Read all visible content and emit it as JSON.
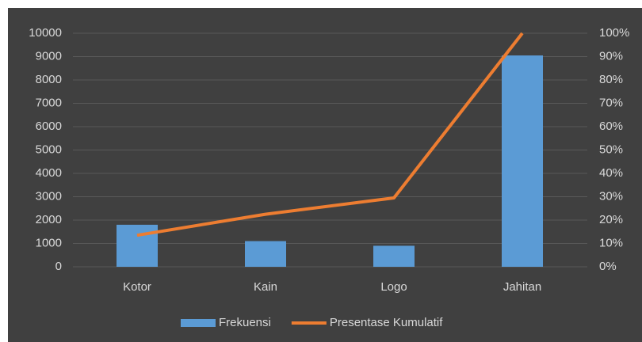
{
  "chart_data": {
    "type": "bar",
    "categories": [
      "Kotor",
      "Kain",
      "Logo",
      "Jahitan"
    ],
    "series": [
      {
        "name": "Frekuensi",
        "color": "#5b9bd5",
        "values": [
          1800,
          1100,
          900,
          9050
        ]
      },
      {
        "name": "Presentase Kumulatif",
        "color": "#ed7d31",
        "type": "line",
        "axis": "y2",
        "values": [
          13.5,
          22.5,
          29.5,
          100
        ]
      }
    ],
    "ylim": [
      0,
      10000
    ],
    "yticks": [
      0,
      1000,
      2000,
      3000,
      4000,
      5000,
      6000,
      7000,
      8000,
      9000,
      10000
    ],
    "y2lim": [
      0,
      100
    ],
    "y2ticks": [
      {
        "value": 0,
        "label": "0%"
      },
      {
        "value": 10,
        "label": "10%"
      },
      {
        "value": 20,
        "label": "20%"
      },
      {
        "value": 30,
        "label": "30%"
      },
      {
        "value": 40,
        "label": "40%"
      },
      {
        "value": 50,
        "label": "50%"
      },
      {
        "value": 60,
        "label": "60%"
      },
      {
        "value": 70,
        "label": "70%"
      },
      {
        "value": 80,
        "label": "80%"
      },
      {
        "value": 90,
        "label": "90%"
      },
      {
        "value": 100,
        "label": "100%"
      }
    ],
    "grid": true,
    "legend": "bottom"
  }
}
